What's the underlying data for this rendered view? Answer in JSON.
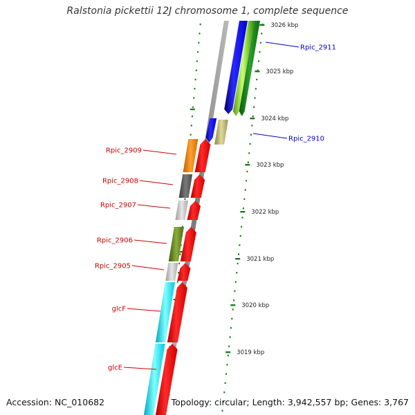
{
  "title": "Ralstonia pickettii 12J chromosome 1, complete sequence",
  "footer": {
    "accession": "Accession: NC_010682",
    "summary": "Topology: circular; Length: 3,942,557 bp; Genes: 3,767"
  },
  "colors": {
    "background": "#ffffff",
    "backbone": "#8c8c8c",
    "tick": "#1a7a1a",
    "label_forward": "#0000cc",
    "label_reverse": "#cc0000"
  },
  "scale_ticks": [
    {
      "label": "3026 kbp"
    },
    {
      "label": "3025 kbp"
    },
    {
      "label": "3024 kbp"
    },
    {
      "label": "3023 kbp"
    },
    {
      "label": "3022 kbp"
    },
    {
      "label": "3021 kbp"
    },
    {
      "label": "3020 kbp"
    },
    {
      "label": "3019 kbp"
    }
  ],
  "genes": [
    {
      "label": "Rpic_2911",
      "strand": "forward",
      "cog_color": "#7fff00"
    },
    {
      "label": "Rpic_2910",
      "strand": "forward",
      "cog_color": "#bdb76b"
    },
    {
      "label": "Rpic_2909",
      "strand": "reverse",
      "cog_color": "#ff8c00"
    },
    {
      "label": "Rpic_2908",
      "strand": "reverse",
      "cog_color": "#666666"
    },
    {
      "label": "Rpic_2907",
      "strand": "reverse",
      "cog_color": "#c0c0c0"
    },
    {
      "label": "Rpic_2906",
      "strand": "reverse",
      "cog_color": "#6b8e23"
    },
    {
      "label": "Rpic_2905",
      "strand": "reverse",
      "cog_color": "#c0c0c0"
    },
    {
      "label": "glcF",
      "strand": "reverse",
      "cog_color": "#00ffff"
    },
    {
      "label": "glcE",
      "strand": "reverse",
      "cog_color": "#00ffff"
    }
  ]
}
